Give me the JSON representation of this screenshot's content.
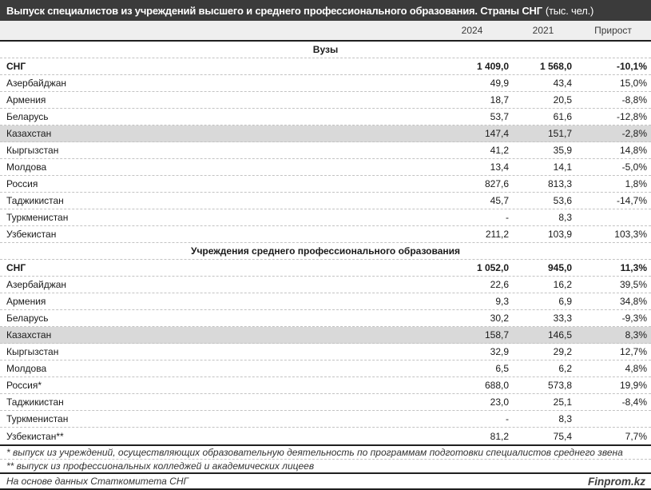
{
  "title": {
    "main": "Выпуск специалистов из учреждений высшего и среднего профессионального образования. Страны СНГ",
    "unit": "(тыс. чел.)"
  },
  "chart_data": {
    "type": "table",
    "title": "Выпуск специалистов из учреждений высшего и среднего профессионального образования. Страны СНГ (тыс. чел.)",
    "columns": [
      "2024",
      "2021",
      "Прирост"
    ],
    "sections": [
      {
        "header": "Вузы",
        "rows": [
          {
            "name": "СНГ",
            "v2024": "1 409,0",
            "v2021": "1 568,0",
            "growth": "-10,1%",
            "bold": true
          },
          {
            "name": "Азербайджан",
            "v2024": "49,9",
            "v2021": "43,4",
            "growth": "15,0%"
          },
          {
            "name": "Армения",
            "v2024": "18,7",
            "v2021": "20,5",
            "growth": "-8,8%"
          },
          {
            "name": "Беларусь",
            "v2024": "53,7",
            "v2021": "61,6",
            "growth": "-12,8%"
          },
          {
            "name": "Казахстан",
            "v2024": "147,4",
            "v2021": "151,7",
            "growth": "-2,8%",
            "highlight": true
          },
          {
            "name": "Кыргызстан",
            "v2024": "41,2",
            "v2021": "35,9",
            "growth": "14,8%"
          },
          {
            "name": "Молдова",
            "v2024": "13,4",
            "v2021": "14,1",
            "growth": "-5,0%"
          },
          {
            "name": "Россия",
            "v2024": "827,6",
            "v2021": "813,3",
            "growth": "1,8%"
          },
          {
            "name": "Таджикистан",
            "v2024": "45,7",
            "v2021": "53,6",
            "growth": "-14,7%"
          },
          {
            "name": "Туркменистан",
            "v2024": "-",
            "v2021": "8,3",
            "growth": ""
          },
          {
            "name": "Узбекистан",
            "v2024": "211,2",
            "v2021": "103,9",
            "growth": "103,3%"
          }
        ]
      },
      {
        "header": "Учреждения среднего профессионального образования",
        "rows": [
          {
            "name": "СНГ",
            "v2024": "1 052,0",
            "v2021": "945,0",
            "growth": "11,3%",
            "bold": true
          },
          {
            "name": "Азербайджан",
            "v2024": "22,6",
            "v2021": "16,2",
            "growth": "39,5%"
          },
          {
            "name": "Армения",
            "v2024": "9,3",
            "v2021": "6,9",
            "growth": "34,8%"
          },
          {
            "name": "Беларусь",
            "v2024": "30,2",
            "v2021": "33,3",
            "growth": "-9,3%"
          },
          {
            "name": "Казахстан",
            "v2024": "158,7",
            "v2021": "146,5",
            "growth": "8,3%",
            "highlight": true
          },
          {
            "name": "Кыргызстан",
            "v2024": "32,9",
            "v2021": "29,2",
            "growth": "12,7%"
          },
          {
            "name": "Молдова",
            "v2024": "6,5",
            "v2021": "6,2",
            "growth": "4,8%"
          },
          {
            "name": "Россия*",
            "v2024": "688,0",
            "v2021": "573,8",
            "growth": "19,9%"
          },
          {
            "name": "Таджикистан",
            "v2024": "23,0",
            "v2021": "25,1",
            "growth": "-8,4%"
          },
          {
            "name": "Туркменистан",
            "v2024": "-",
            "v2021": "8,3",
            "growth": ""
          },
          {
            "name": "Узбекистан**",
            "v2024": "81,2",
            "v2021": "75,4",
            "growth": "7,7%"
          }
        ]
      }
    ]
  },
  "footnotes": {
    "first": "* выпуск из учреждений, осуществляющих образовательную деятельность по программам подготовки специалистов среднего звена",
    "second": "** выпуск из профессиональных колледжей и академических лицеев"
  },
  "footer": {
    "source": "На основе данных Статкомитета СНГ",
    "brand": "Finprom.kz"
  },
  "colors": {
    "title_bg": "#3b3b3b",
    "header_bg": "#efefef",
    "highlight_bg": "#d9d9d9",
    "dash_line": "#c3c3c3",
    "solid_line": "#1f1f1f"
  }
}
